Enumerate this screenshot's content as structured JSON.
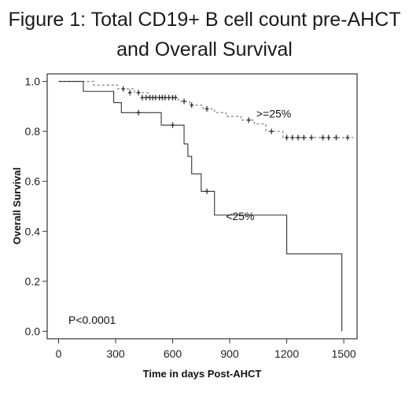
{
  "figure": {
    "title_line1": "Figure 1: Total CD19+ B cell count pre-AHCT",
    "title_line2": "and Overall Survival"
  },
  "chart_data": {
    "type": "line",
    "title": "Figure 1: Total CD19+ B cell count pre-AHCT and Overall Survival",
    "xlabel": "Time in days Post-AHCT",
    "ylabel": "Overall Survival",
    "xlim": [
      -60,
      1570
    ],
    "ylim": [
      -0.03,
      1.03
    ],
    "xticks": [
      0,
      300,
      600,
      900,
      1200,
      1500
    ],
    "yticks": [
      0.0,
      0.2,
      0.4,
      0.6,
      0.8,
      1.0
    ],
    "ytick_labels": [
      "0.0",
      "0.2",
      "0.4",
      "0.6",
      "0.8",
      "1.0"
    ],
    "grid": false,
    "annotation": "P<0.0001",
    "series": [
      {
        "name": ">=25%",
        "style": "dashed",
        "color": "#888888",
        "steps": [
          [
            0,
            1.0
          ],
          [
            185,
            0.985
          ],
          [
            310,
            0.97
          ],
          [
            400,
            0.955
          ],
          [
            470,
            0.935
          ],
          [
            630,
            0.92
          ],
          [
            690,
            0.905
          ],
          [
            760,
            0.89
          ],
          [
            820,
            0.875
          ],
          [
            880,
            0.86
          ],
          [
            960,
            0.845
          ],
          [
            1030,
            0.83
          ],
          [
            1090,
            0.8
          ],
          [
            1180,
            0.775
          ],
          [
            1550,
            0.775
          ]
        ],
        "censored": [
          [
            340,
            0.97
          ],
          [
            375,
            0.955
          ],
          [
            420,
            0.955
          ],
          [
            440,
            0.935
          ],
          [
            460,
            0.935
          ],
          [
            480,
            0.935
          ],
          [
            495,
            0.935
          ],
          [
            510,
            0.935
          ],
          [
            530,
            0.935
          ],
          [
            545,
            0.935
          ],
          [
            560,
            0.935
          ],
          [
            580,
            0.935
          ],
          [
            600,
            0.935
          ],
          [
            615,
            0.935
          ],
          [
            660,
            0.92
          ],
          [
            700,
            0.905
          ],
          [
            780,
            0.89
          ],
          [
            1000,
            0.845
          ],
          [
            1120,
            0.8
          ],
          [
            1200,
            0.775
          ],
          [
            1230,
            0.775
          ],
          [
            1260,
            0.775
          ],
          [
            1290,
            0.775
          ],
          [
            1330,
            0.775
          ],
          [
            1390,
            0.775
          ],
          [
            1420,
            0.775
          ],
          [
            1460,
            0.775
          ],
          [
            1520,
            0.775
          ]
        ]
      },
      {
        "name": "<25%",
        "style": "solid",
        "color": "#333333",
        "steps": [
          [
            0,
            1.0
          ],
          [
            130,
            0.96
          ],
          [
            290,
            0.915
          ],
          [
            330,
            0.875
          ],
          [
            540,
            0.825
          ],
          [
            660,
            0.75
          ],
          [
            680,
            0.7
          ],
          [
            700,
            0.63
          ],
          [
            750,
            0.56
          ],
          [
            820,
            0.465
          ],
          [
            1200,
            0.31
          ],
          [
            1490,
            0.0
          ]
        ],
        "censored": [
          [
            420,
            0.875
          ],
          [
            600,
            0.825
          ],
          [
            780,
            0.56
          ]
        ]
      }
    ],
    "labels": [
      {
        "text": ">=25%",
        "x": 1040,
        "y": 0.83
      },
      {
        "text": "<25%",
        "x": 880,
        "y": 0.42
      }
    ]
  }
}
